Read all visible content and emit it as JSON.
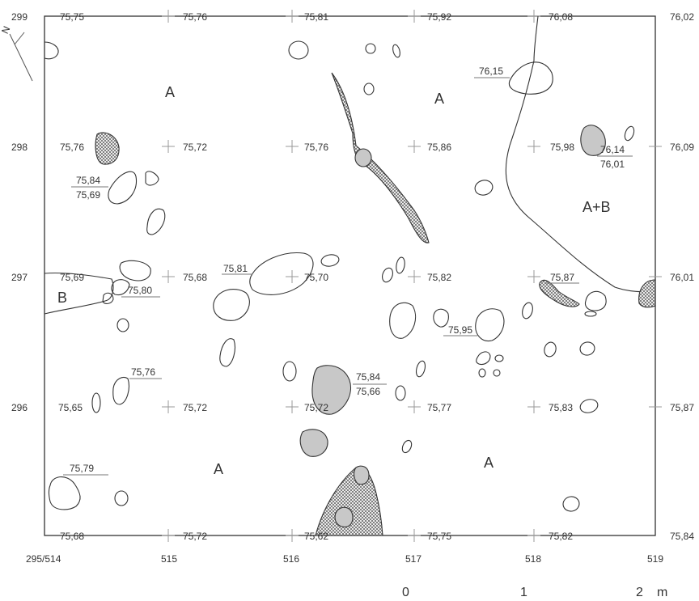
{
  "map": {
    "north_label": "N",
    "y_axis_labels": [
      {
        "text": "299"
      },
      {
        "text": "298"
      },
      {
        "text": "297"
      },
      {
        "text": "296"
      }
    ],
    "x_axis_labels": [
      {
        "text": "295/514"
      },
      {
        "text": "515"
      },
      {
        "text": "516"
      },
      {
        "text": "517"
      },
      {
        "text": "518"
      },
      {
        "text": "519"
      }
    ],
    "scale": {
      "zero": "0",
      "one": "1",
      "two": "2",
      "unit": "m"
    },
    "zones": [
      "A",
      "A",
      "A+B",
      "B",
      "A",
      "A"
    ],
    "elevations": [
      "75,75",
      "75,76",
      "75,81",
      "75,92",
      "76,08",
      "76,02",
      "75,76",
      "75,72",
      "75,76",
      "75,86",
      "75,98",
      "76,09",
      "75,84",
      "75,69",
      "76,15",
      "76,14",
      "76,01",
      "75,69",
      "75,68",
      "75,81",
      "75,70",
      "75,82",
      "75,87",
      "76,01",
      "75,80",
      "75,95",
      "75,76",
      "75,65",
      "75,72",
      "75,72",
      "75,84",
      "75,66",
      "75,77",
      "75,83",
      "75,87",
      "75,79",
      "75,68",
      "75,72",
      "75,62",
      "75,75",
      "75,82",
      "75,84"
    ]
  }
}
